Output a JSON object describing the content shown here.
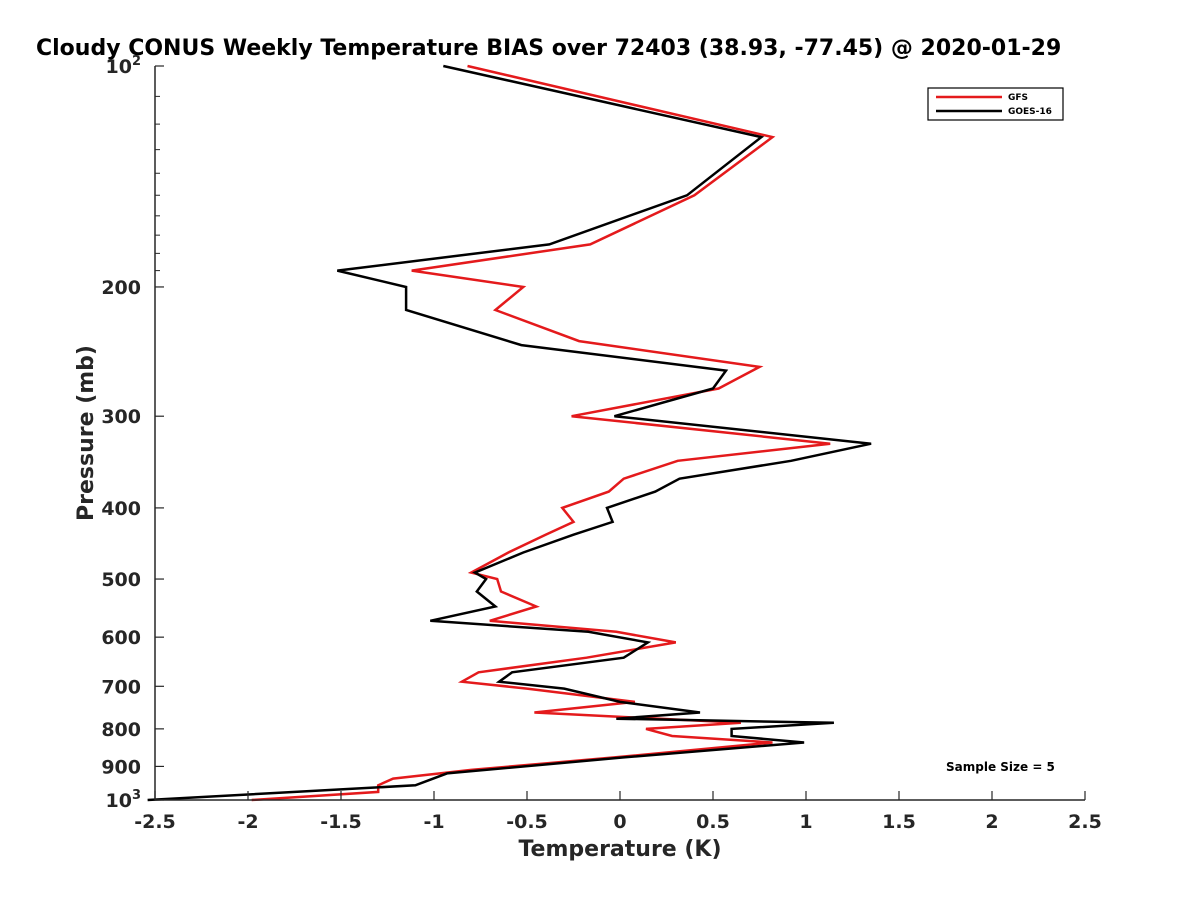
{
  "chart_data": {
    "type": "line",
    "title": "Cloudy CONUS Weekly Temperature BIAS over 72403 (38.93, -77.45) @ 2020-01-29",
    "xlabel": "Temperature (K)",
    "ylabel": "Pressure (mb)",
    "xlim": [
      -2.5,
      2.5
    ],
    "ylim": [
      100,
      1000
    ],
    "y_scale": "log",
    "y_reversed": true,
    "x_ticks": [
      -2.5,
      -2,
      -1.5,
      -1,
      -0.5,
      0,
      0.5,
      1,
      1.5,
      2,
      2.5
    ],
    "x_tick_labels": [
      "-2.5",
      "-2",
      "-1.5",
      "-1",
      "-0.5",
      "0",
      "0.5",
      "1",
      "1.5",
      "2",
      "2.5"
    ],
    "y_ticks": [
      200,
      300,
      400,
      500,
      600,
      700,
      800,
      900
    ],
    "y_tick_labels": [
      "200",
      "300",
      "400",
      "500",
      "600",
      "700",
      "800",
      "900"
    ],
    "y_ends": [
      {
        "value": 100,
        "base": "10",
        "exp": "2"
      },
      {
        "value": 1000,
        "base": "10",
        "exp": "3"
      }
    ],
    "legend_position": "top-right",
    "annotation": "Sample Size = 5",
    "series": [
      {
        "name": "GFS",
        "color": "#e41a1c",
        "points": [
          [
            -0.82,
            100
          ],
          [
            0.82,
            125
          ],
          [
            0.4,
            150
          ],
          [
            -0.16,
            175
          ],
          [
            -1.12,
            190
          ],
          [
            -0.52,
            200
          ],
          [
            -0.67,
            215
          ],
          [
            -0.22,
            237
          ],
          [
            0.75,
            257
          ],
          [
            0.53,
            275
          ],
          [
            -0.26,
            300
          ],
          [
            1.13,
            327
          ],
          [
            0.31,
            345
          ],
          [
            0.02,
            365
          ],
          [
            -0.06,
            380
          ],
          [
            -0.31,
            400
          ],
          [
            -0.25,
            418
          ],
          [
            -0.4,
            435
          ],
          [
            -0.6,
            460
          ],
          [
            -0.8,
            490
          ],
          [
            -0.66,
            500
          ],
          [
            -0.64,
            520
          ],
          [
            -0.45,
            545
          ],
          [
            -0.7,
            570
          ],
          [
            -0.02,
            590
          ],
          [
            0.3,
            610
          ],
          [
            -0.18,
            640
          ],
          [
            -0.76,
            670
          ],
          [
            -0.85,
            690
          ],
          [
            -0.5,
            705
          ],
          [
            0.08,
            735
          ],
          [
            -0.46,
            760
          ],
          [
            0.65,
            785
          ],
          [
            0.14,
            800
          ],
          [
            0.28,
            818
          ],
          [
            0.82,
            835
          ],
          [
            -0.03,
            875
          ],
          [
            -0.8,
            910
          ],
          [
            -1.22,
            935
          ],
          [
            -1.3,
            955
          ],
          [
            -1.3,
            975
          ],
          [
            -1.98,
            1000
          ]
        ]
      },
      {
        "name": "GOES-16",
        "color": "#000000",
        "points": [
          [
            -0.95,
            100
          ],
          [
            0.76,
            125
          ],
          [
            0.36,
            150
          ],
          [
            -0.38,
            175
          ],
          [
            -1.52,
            190
          ],
          [
            -1.15,
            200
          ],
          [
            -1.15,
            215
          ],
          [
            -0.53,
            240
          ],
          [
            0.57,
            260
          ],
          [
            0.5,
            275
          ],
          [
            -0.03,
            300
          ],
          [
            1.35,
            327
          ],
          [
            0.92,
            345
          ],
          [
            0.32,
            365
          ],
          [
            0.19,
            380
          ],
          [
            -0.07,
            400
          ],
          [
            -0.04,
            418
          ],
          [
            -0.25,
            435
          ],
          [
            -0.52,
            460
          ],
          [
            -0.78,
            490
          ],
          [
            -0.72,
            500
          ],
          [
            -0.77,
            520
          ],
          [
            -0.67,
            545
          ],
          [
            -1.02,
            570
          ],
          [
            -0.17,
            590
          ],
          [
            0.15,
            610
          ],
          [
            0.02,
            640
          ],
          [
            -0.58,
            670
          ],
          [
            -0.65,
            690
          ],
          [
            -0.3,
            705
          ],
          [
            0.0,
            735
          ],
          [
            0.43,
            760
          ],
          [
            -0.02,
            775
          ],
          [
            1.15,
            785
          ],
          [
            0.6,
            800
          ],
          [
            0.6,
            818
          ],
          [
            0.99,
            835
          ],
          [
            0.02,
            875
          ],
          [
            -0.93,
            920
          ],
          [
            -1.1,
            955
          ],
          [
            -2.54,
            1000
          ]
        ]
      }
    ]
  }
}
